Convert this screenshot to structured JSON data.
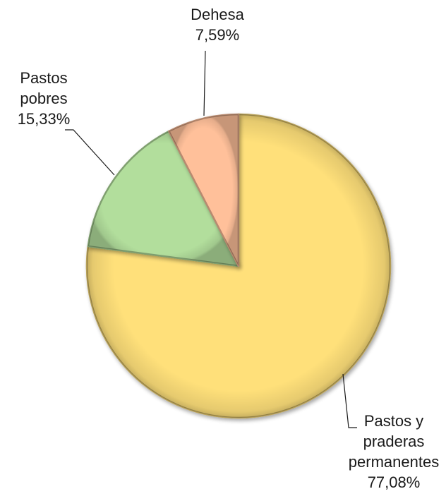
{
  "chart_data": {
    "type": "pie",
    "title": "",
    "slices": [
      {
        "label_lines": [
          "Pastos y",
          "praderas",
          "permanentes",
          "77,08%"
        ],
        "value": 77.08,
        "color": "#FFE07A"
      },
      {
        "label_lines": [
          "Pastos",
          "pobres",
          "15,33%"
        ],
        "value": 15.33,
        "color": "#B2DE9C"
      },
      {
        "label_lines": [
          "Dehesa",
          "7,59%"
        ],
        "value": 7.59,
        "color": "#FFC09A"
      }
    ],
    "start_angle": "12 o'clock",
    "direction": "clockwise",
    "legend": "none",
    "data_labels": "outside with leader lines"
  }
}
